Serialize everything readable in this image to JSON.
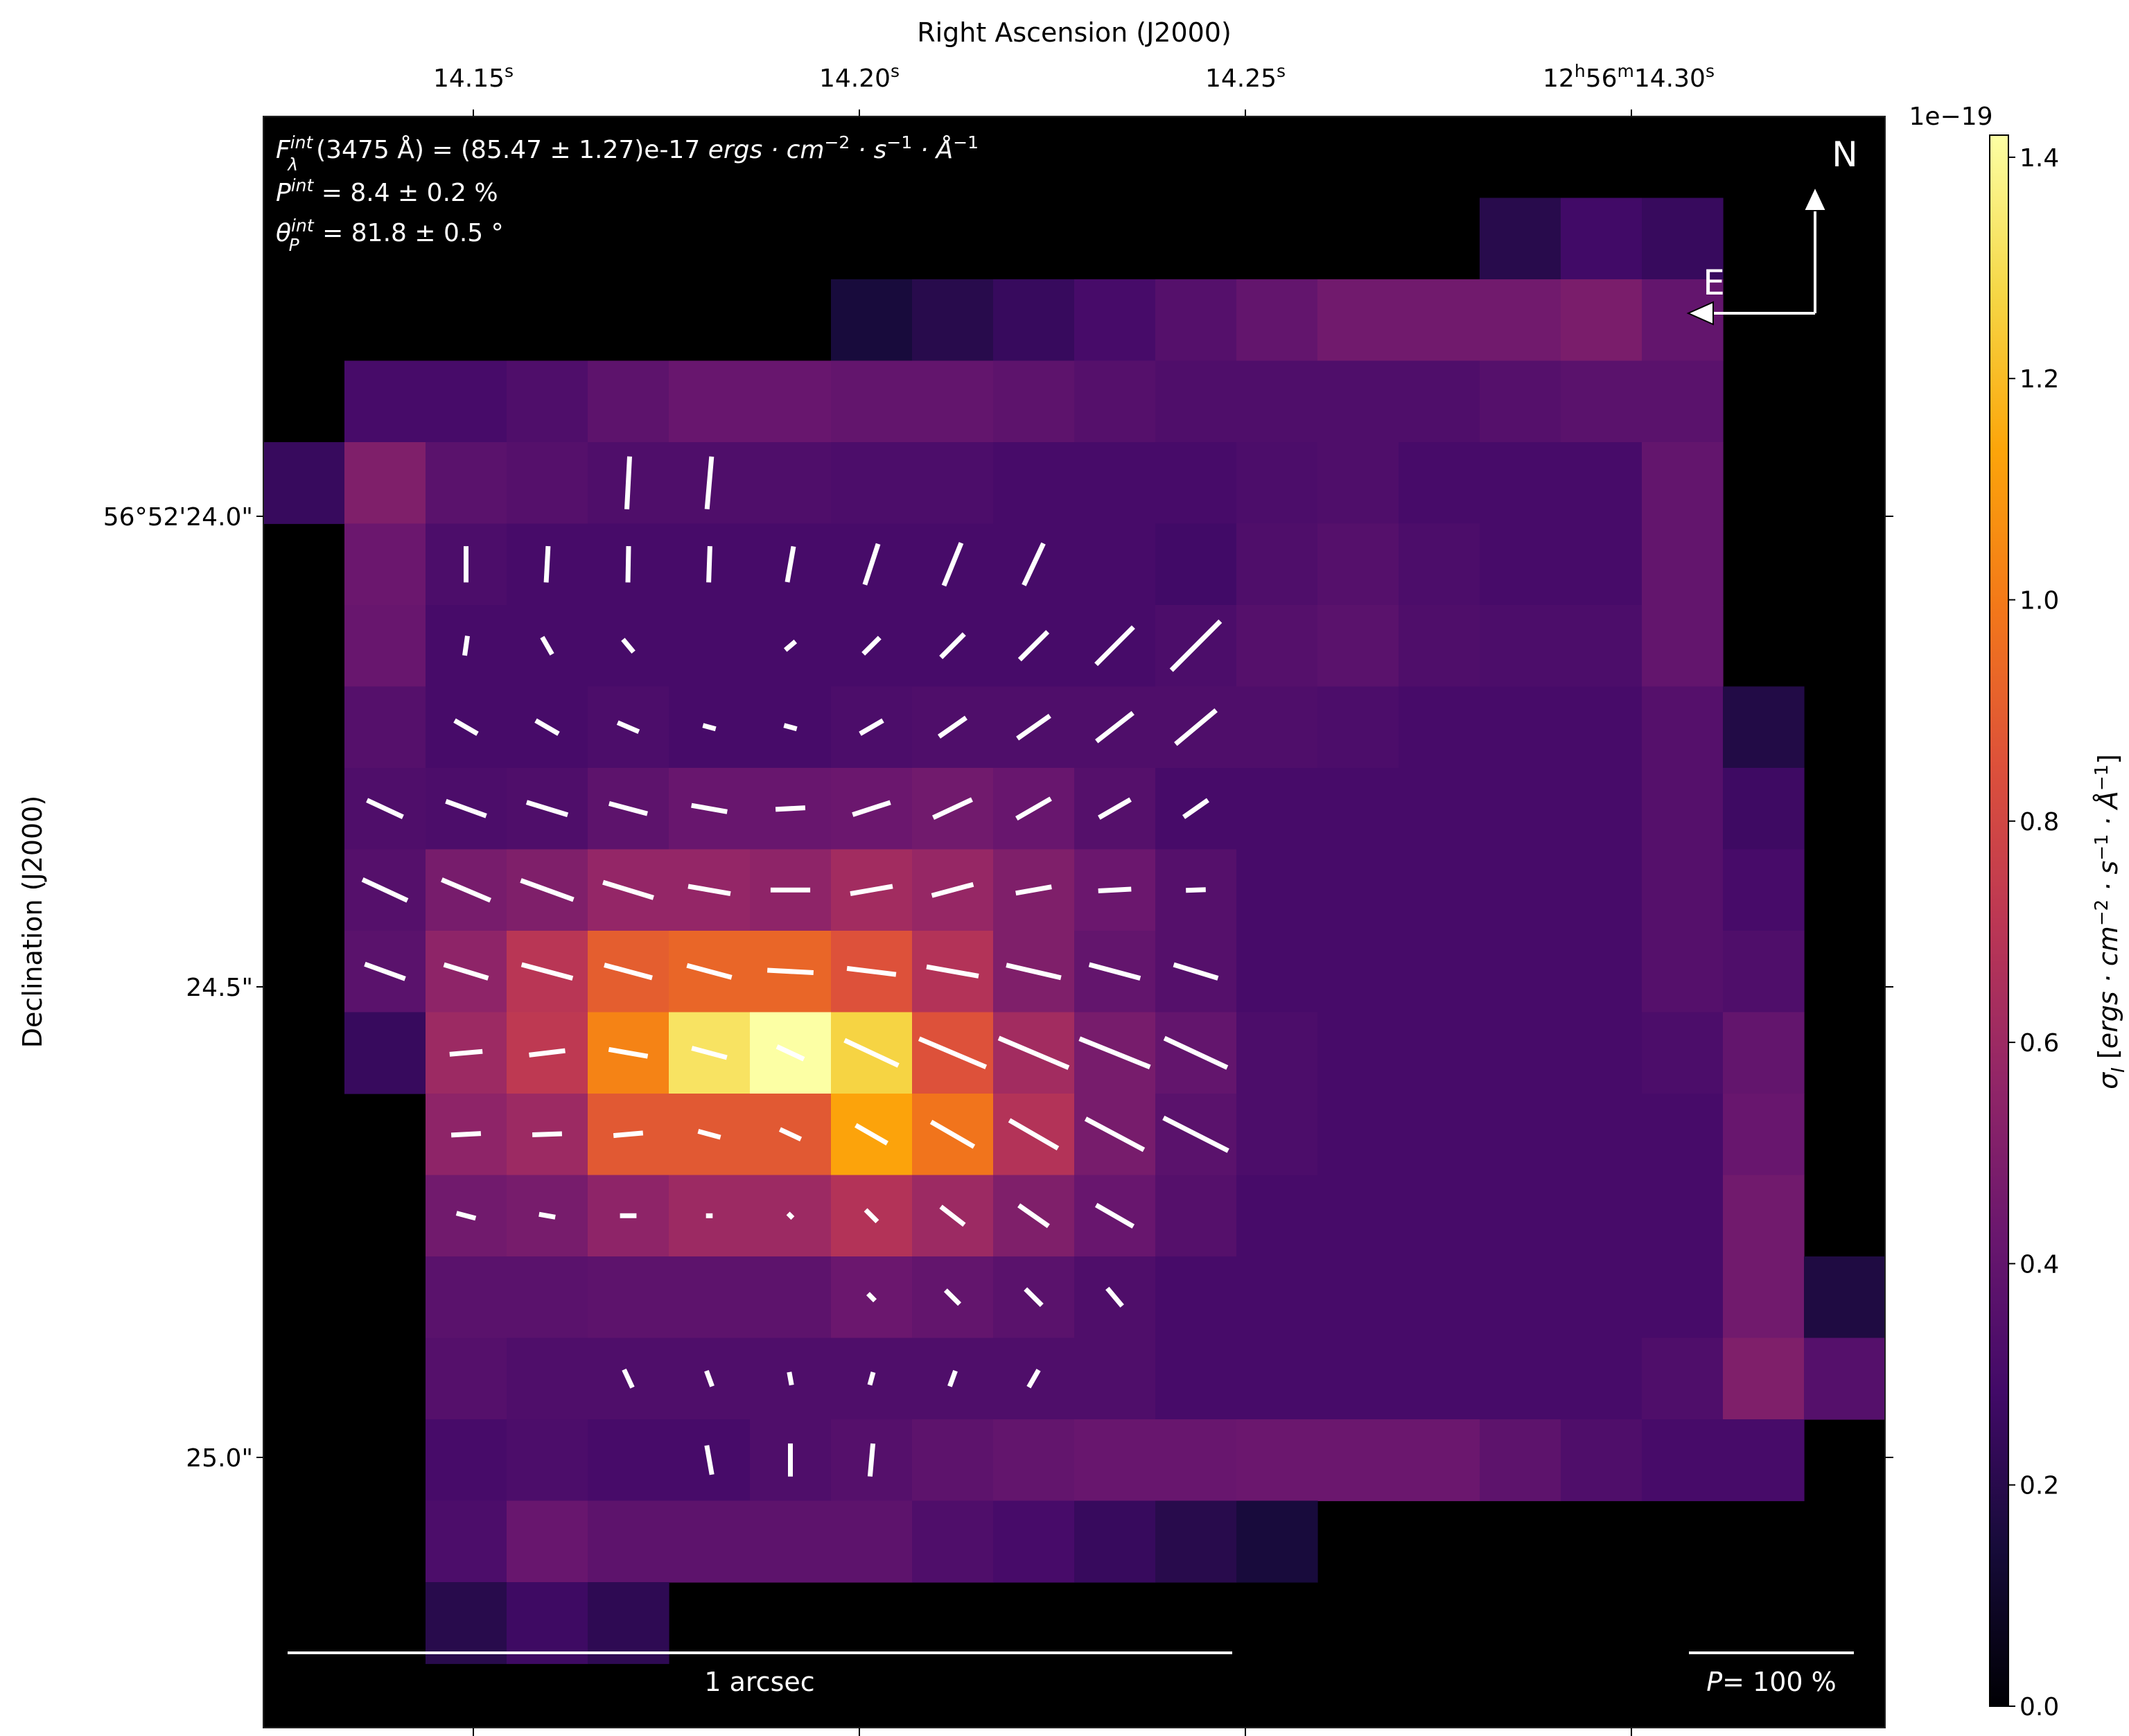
{
  "chart_data": {
    "type": "heatmap",
    "top_axis_title": "Right Ascension (J2000)",
    "left_axis_title": "Declination (J2000)",
    "ra_ticks": [
      {
        "label": "14.15",
        "unit": "s"
      },
      {
        "label": "14.20",
        "unit": "s"
      },
      {
        "label": "14.25",
        "unit": "s"
      },
      {
        "label": "12h56m14.30",
        "unit": "s",
        "prefix_h": "12",
        "prefix_m": "56",
        "value": "14.30"
      }
    ],
    "dec_ticks": [
      "56°52'24.0\"",
      "24.5\"",
      "25.0\""
    ],
    "annotations": {
      "flux": "F_λ^int(3475 Å) = (85.47 ± 1.27)e-17 ergs · cm⁻² · s⁻¹ · Å⁻¹",
      "flux_parts": {
        "main": "F",
        "sub": "λ",
        "sup": "int",
        "rest": "(3475 Å) = (85.47 ± 1.27)e-17 ",
        "units": "ergs · cm",
        "exp1": "−2",
        "s_part": " · s",
        "exp2": "−1",
        "a_part": " · Å",
        "exp3": "−1"
      },
      "pol": "P^int = 8.4 ± 0.2 %",
      "pol_parts": {
        "main": "P",
        "sup": "int",
        "rest": " = 8.4 ± 0.2 %"
      },
      "angle": "θ_P^int = 81.8 ± 0.5 °",
      "angle_parts": {
        "main": "θ",
        "sub": "P",
        "sup": "int",
        "rest": " = 81.8 ± 0.5 °"
      },
      "north": "N",
      "east": "E",
      "scale_bar": "1 arcsec",
      "pol_scale": "P= 100 %",
      "pol_scale_parts": {
        "p": "P",
        "rest": "= 100 %"
      }
    },
    "colorbar": {
      "colormap": "inferno",
      "multiplier": "1e−19",
      "label": "σ_I [ergs · cm⁻² · s⁻¹ · Å⁻¹]",
      "label_parts": {
        "sigma": "σ",
        "sub": "I",
        "open": " [",
        "units": "ergs · cm",
        "exp1": "−2",
        "s_part": " · s",
        "exp2": "−1",
        "a_part": " · Å",
        "exp3": "−1",
        "close": "]"
      },
      "range": [
        0.0,
        1.42
      ],
      "ticks": [
        0.0,
        0.2,
        0.4,
        0.6,
        0.8,
        1.0,
        1.2,
        1.4
      ],
      "tick_labels": [
        "0.0",
        "0.2",
        "0.4",
        "0.6",
        "0.8",
        "1.0",
        "1.2",
        "1.4"
      ]
    },
    "grid": {
      "cols": 20,
      "rows": 19
    },
    "values": [
      [
        null,
        null,
        null,
        null,
        null,
        null,
        null,
        null,
        null,
        null,
        null,
        null,
        null,
        null,
        null,
        null,
        null,
        null,
        null,
        null
      ],
      [
        null,
        null,
        null,
        null,
        null,
        null,
        null,
        null,
        null,
        null,
        null,
        null,
        null,
        null,
        null,
        0.2,
        0.28,
        0.25,
        null,
        null
      ],
      [
        null,
        null,
        null,
        null,
        null,
        null,
        null,
        0.15,
        0.2,
        0.25,
        0.3,
        0.35,
        0.4,
        0.45,
        0.45,
        0.45,
        0.48,
        0.4,
        null,
        null
      ],
      [
        null,
        0.3,
        0.3,
        0.33,
        0.38,
        0.42,
        0.42,
        0.4,
        0.4,
        0.38,
        0.35,
        0.33,
        0.33,
        0.33,
        0.33,
        0.35,
        0.37,
        0.37,
        null,
        null
      ],
      [
        0.25,
        0.5,
        0.37,
        0.35,
        0.33,
        0.33,
        0.33,
        0.32,
        0.32,
        0.3,
        0.3,
        0.3,
        0.32,
        0.33,
        0.3,
        0.3,
        0.3,
        0.4,
        null,
        null
      ],
      [
        null,
        0.43,
        0.32,
        0.3,
        0.3,
        0.3,
        0.3,
        0.3,
        0.3,
        0.3,
        0.3,
        0.28,
        0.33,
        0.35,
        0.32,
        0.3,
        0.3,
        0.4,
        null,
        null
      ],
      [
        null,
        0.42,
        0.3,
        0.3,
        0.3,
        0.3,
        0.3,
        0.3,
        0.3,
        0.3,
        0.3,
        0.32,
        0.35,
        0.37,
        0.33,
        0.32,
        0.32,
        0.4,
        null,
        null
      ],
      [
        null,
        0.35,
        0.3,
        0.3,
        0.32,
        0.3,
        0.3,
        0.32,
        0.33,
        0.33,
        0.33,
        0.33,
        0.33,
        0.32,
        0.3,
        0.3,
        0.3,
        0.35,
        0.18,
        null
      ],
      [
        null,
        0.33,
        0.32,
        0.33,
        0.38,
        0.42,
        0.42,
        0.43,
        0.45,
        0.42,
        0.35,
        0.3,
        0.3,
        0.3,
        0.3,
        0.3,
        0.3,
        0.35,
        0.27,
        null
      ],
      [
        null,
        0.35,
        0.47,
        0.5,
        0.57,
        0.57,
        0.55,
        0.62,
        0.58,
        0.5,
        0.43,
        0.35,
        0.3,
        0.3,
        0.3,
        0.3,
        0.3,
        0.35,
        0.3,
        null
      ],
      [
        null,
        0.37,
        0.55,
        0.7,
        0.9,
        0.93,
        0.93,
        0.85,
        0.68,
        0.5,
        0.4,
        0.35,
        0.3,
        0.3,
        0.3,
        0.3,
        0.3,
        0.35,
        0.33,
        null
      ],
      [
        null,
        0.25,
        0.6,
        0.72,
        1.03,
        1.32,
        1.42,
        1.27,
        0.85,
        0.62,
        0.47,
        0.4,
        0.32,
        0.3,
        0.3,
        0.3,
        0.3,
        0.32,
        0.4,
        null
      ],
      [
        null,
        null,
        0.55,
        0.6,
        0.88,
        0.88,
        0.88,
        1.13,
        0.98,
        0.68,
        0.47,
        0.37,
        0.32,
        0.3,
        0.3,
        0.3,
        0.3,
        0.3,
        0.42,
        null
      ],
      [
        null,
        null,
        0.45,
        0.47,
        0.55,
        0.6,
        0.6,
        0.68,
        0.6,
        0.5,
        0.42,
        0.35,
        0.3,
        0.3,
        0.3,
        0.3,
        0.3,
        0.3,
        0.45,
        null
      ],
      [
        null,
        null,
        0.37,
        0.37,
        0.38,
        0.38,
        0.38,
        0.43,
        0.4,
        0.37,
        0.33,
        0.3,
        0.3,
        0.3,
        0.3,
        0.3,
        0.3,
        0.3,
        0.45,
        0.17
      ],
      [
        null,
        null,
        0.35,
        0.33,
        0.33,
        0.33,
        0.33,
        0.33,
        0.33,
        0.33,
        0.33,
        0.3,
        0.3,
        0.3,
        0.3,
        0.3,
        0.3,
        0.33,
        0.5,
        0.35
      ],
      [
        null,
        null,
        0.3,
        0.32,
        0.3,
        0.3,
        0.33,
        0.35,
        0.38,
        0.4,
        0.42,
        0.42,
        0.43,
        0.43,
        0.43,
        0.38,
        0.33,
        0.3,
        0.3,
        null
      ],
      [
        null,
        null,
        0.32,
        0.42,
        0.38,
        0.38,
        0.38,
        0.38,
        0.33,
        0.3,
        0.25,
        0.2,
        0.15,
        null,
        null,
        null,
        null,
        null,
        null,
        null
      ],
      [
        null,
        null,
        0.2,
        0.27,
        0.22,
        null,
        null,
        null,
        null,
        null,
        null,
        null,
        null,
        null,
        null,
        null,
        null,
        null,
        null,
        null
      ]
    ],
    "pol_vectors": [
      [
        4,
        4,
        0.32,
        -3
      ],
      [
        4,
        5,
        0.32,
        -5
      ],
      [
        5,
        2,
        0.22,
        0
      ],
      [
        5,
        3,
        0.22,
        -3
      ],
      [
        5,
        4,
        0.22,
        -1
      ],
      [
        5,
        5,
        0.22,
        -2
      ],
      [
        5,
        6,
        0.22,
        -10
      ],
      [
        5,
        7,
        0.26,
        -18
      ],
      [
        5,
        8,
        0.28,
        -22
      ],
      [
        5,
        9,
        0.28,
        -25
      ],
      [
        6,
        2,
        0.12,
        -8
      ],
      [
        6,
        3,
        0.12,
        30
      ],
      [
        6,
        4,
        0.1,
        40
      ],
      [
        6,
        6,
        0.08,
        -50
      ],
      [
        6,
        7,
        0.14,
        -45
      ],
      [
        6,
        8,
        0.2,
        -45
      ],
      [
        6,
        9,
        0.24,
        -45
      ],
      [
        6,
        10,
        0.32,
        -45
      ],
      [
        6,
        11,
        0.42,
        -45
      ],
      [
        7,
        2,
        0.16,
        60
      ],
      [
        7,
        3,
        0.16,
        60
      ],
      [
        7,
        4,
        0.14,
        67
      ],
      [
        7,
        5,
        0.08,
        75
      ],
      [
        7,
        6,
        0.08,
        75
      ],
      [
        7,
        7,
        0.16,
        -60
      ],
      [
        7,
        8,
        0.2,
        -55
      ],
      [
        7,
        9,
        0.24,
        -55
      ],
      [
        7,
        10,
        0.28,
        -52
      ],
      [
        7,
        11,
        0.32,
        -50
      ],
      [
        8,
        1,
        0.24,
        65
      ],
      [
        8,
        2,
        0.26,
        70
      ],
      [
        8,
        3,
        0.26,
        73
      ],
      [
        8,
        4,
        0.24,
        75
      ],
      [
        8,
        5,
        0.22,
        80
      ],
      [
        8,
        6,
        0.18,
        -87
      ],
      [
        8,
        7,
        0.24,
        -72
      ],
      [
        8,
        8,
        0.26,
        -65
      ],
      [
        8,
        9,
        0.24,
        -60
      ],
      [
        8,
        10,
        0.22,
        -60
      ],
      [
        8,
        11,
        0.18,
        -55
      ],
      [
        9,
        1,
        0.3,
        65
      ],
      [
        9,
        2,
        0.32,
        67
      ],
      [
        9,
        3,
        0.34,
        70
      ],
      [
        9,
        4,
        0.32,
        73
      ],
      [
        9,
        5,
        0.26,
        80
      ],
      [
        9,
        6,
        0.24,
        -90
      ],
      [
        9,
        7,
        0.26,
        -80
      ],
      [
        9,
        8,
        0.26,
        -75
      ],
      [
        9,
        9,
        0.22,
        -80
      ],
      [
        9,
        10,
        0.2,
        -87
      ],
      [
        9,
        11,
        0.12,
        -88
      ],
      [
        10,
        1,
        0.26,
        70
      ],
      [
        10,
        2,
        0.28,
        73
      ],
      [
        10,
        3,
        0.32,
        75
      ],
      [
        10,
        4,
        0.3,
        75
      ],
      [
        10,
        5,
        0.28,
        75
      ],
      [
        10,
        6,
        0.28,
        87
      ],
      [
        10,
        7,
        0.3,
        83
      ],
      [
        10,
        8,
        0.32,
        80
      ],
      [
        10,
        9,
        0.34,
        77
      ],
      [
        10,
        10,
        0.32,
        75
      ],
      [
        10,
        11,
        0.28,
        73
      ],
      [
        11,
        2,
        0.2,
        -85
      ],
      [
        11,
        3,
        0.22,
        -83
      ],
      [
        11,
        4,
        0.24,
        80
      ],
      [
        11,
        5,
        0.22,
        75
      ],
      [
        11,
        6,
        0.18,
        65
      ],
      [
        11,
        7,
        0.36,
        65
      ],
      [
        11,
        8,
        0.44,
        67
      ],
      [
        11,
        9,
        0.46,
        67
      ],
      [
        11,
        10,
        0.46,
        68
      ],
      [
        11,
        11,
        0.42,
        65
      ],
      [
        12,
        2,
        0.18,
        -87
      ],
      [
        12,
        3,
        0.18,
        -88
      ],
      [
        12,
        4,
        0.18,
        -85
      ],
      [
        12,
        5,
        0.14,
        75
      ],
      [
        12,
        6,
        0.14,
        65
      ],
      [
        12,
        7,
        0.22,
        60
      ],
      [
        12,
        8,
        0.3,
        60
      ],
      [
        12,
        9,
        0.34,
        60
      ],
      [
        12,
        10,
        0.4,
        62
      ],
      [
        12,
        11,
        0.44,
        63
      ],
      [
        13,
        2,
        0.12,
        75
      ],
      [
        13,
        3,
        0.1,
        80
      ],
      [
        13,
        4,
        0.1,
        90
      ],
      [
        13,
        5,
        0.04,
        90
      ],
      [
        13,
        6,
        0.04,
        45
      ],
      [
        13,
        7,
        0.1,
        45
      ],
      [
        13,
        8,
        0.18,
        52
      ],
      [
        13,
        9,
        0.22,
        55
      ],
      [
        13,
        10,
        0.26,
        60
      ],
      [
        14,
        7,
        0.06,
        45
      ],
      [
        14,
        8,
        0.12,
        45
      ],
      [
        14,
        9,
        0.14,
        45
      ],
      [
        14,
        10,
        0.14,
        40
      ],
      [
        15,
        4,
        0.12,
        25
      ],
      [
        15,
        5,
        0.1,
        20
      ],
      [
        15,
        6,
        0.08,
        10
      ],
      [
        15,
        7,
        0.08,
        -15
      ],
      [
        15,
        8,
        0.1,
        -20
      ],
      [
        15,
        9,
        0.12,
        -30
      ],
      [
        16,
        5,
        0.18,
        10
      ],
      [
        16,
        6,
        0.2,
        0
      ],
      [
        16,
        7,
        0.2,
        -5
      ]
    ]
  }
}
